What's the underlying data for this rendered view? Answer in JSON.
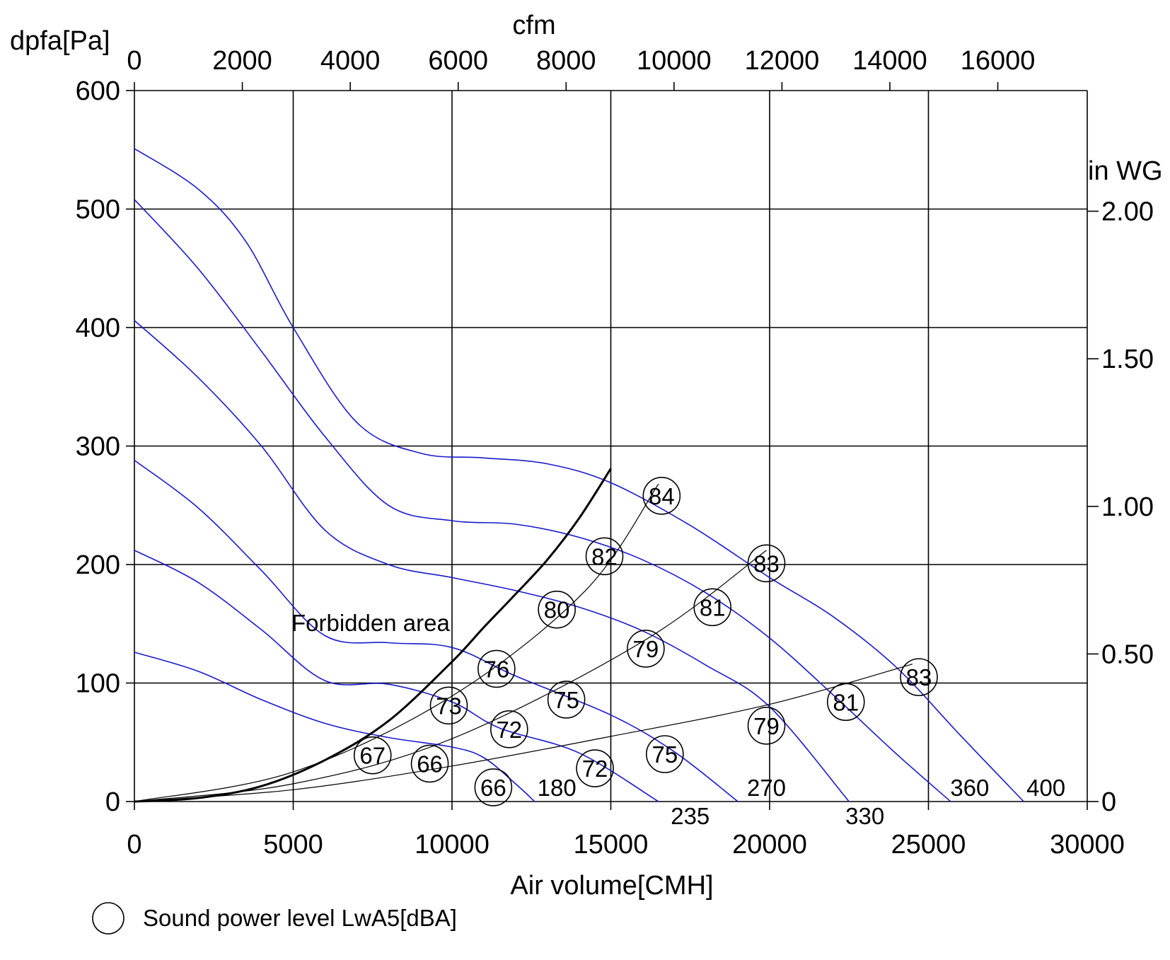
{
  "chart_data": {
    "type": "line",
    "xlabel": "Air volume[CMH]",
    "x2label": "cfm",
    "ylabel": "dpfa[Pa]",
    "y2label": "in WG",
    "xlim": [
      0,
      30000
    ],
    "ylim": [
      0,
      600
    ],
    "x_ticks": [
      0,
      5000,
      10000,
      15000,
      20000,
      25000,
      30000
    ],
    "y_ticks": [
      0,
      100,
      200,
      300,
      400,
      500,
      600
    ],
    "x2_ticks": [
      0,
      2000,
      4000,
      6000,
      8000,
      10000,
      12000,
      14000,
      16000
    ],
    "y2_ticks": [
      {
        "label": "0",
        "value": 0
      },
      {
        "label": "0.50",
        "value": 0.5
      },
      {
        "label": "1.00",
        "value": 1.0
      },
      {
        "label": "1.50",
        "value": 1.5
      },
      {
        "label": "2.00",
        "value": 2.0
      }
    ],
    "grid": true,
    "fan_curves": [
      {
        "points": [
          [
            0,
            126
          ],
          [
            2000,
            110
          ],
          [
            4000,
            86
          ],
          [
            6000,
            66
          ],
          [
            8000,
            54
          ],
          [
            10000,
            46
          ],
          [
            11000,
            37
          ],
          [
            12000,
            15
          ],
          [
            12600,
            0
          ]
        ]
      },
      {
        "points": [
          [
            0,
            212
          ],
          [
            2000,
            185
          ],
          [
            4000,
            145
          ],
          [
            6000,
            102
          ],
          [
            8000,
            99
          ],
          [
            10000,
            84
          ],
          [
            11500,
            62
          ],
          [
            14000,
            41
          ],
          [
            16500,
            0
          ]
        ]
      },
      {
        "points": [
          [
            0,
            288
          ],
          [
            2000,
            248
          ],
          [
            4000,
            195
          ],
          [
            6000,
            140
          ],
          [
            8000,
            134
          ],
          [
            10000,
            130
          ],
          [
            12000,
            106
          ],
          [
            15000,
            73
          ],
          [
            17000,
            42
          ],
          [
            19000,
            0
          ]
        ]
      },
      {
        "points": [
          [
            0,
            406
          ],
          [
            2000,
            358
          ],
          [
            4000,
            300
          ],
          [
            6000,
            229
          ],
          [
            8000,
            200
          ],
          [
            10000,
            189
          ],
          [
            12000,
            178
          ],
          [
            14000,
            164
          ],
          [
            16000,
            144
          ],
          [
            18000,
            115
          ],
          [
            20000,
            80
          ],
          [
            22500,
            0
          ]
        ]
      },
      {
        "points": [
          [
            0,
            508
          ],
          [
            2000,
            450
          ],
          [
            4000,
            380
          ],
          [
            6000,
            308
          ],
          [
            8000,
            250
          ],
          [
            10000,
            237
          ],
          [
            12000,
            234
          ],
          [
            14000,
            223
          ],
          [
            16000,
            204
          ],
          [
            18000,
            176
          ],
          [
            20000,
            138
          ],
          [
            22000,
            90
          ],
          [
            24000,
            40
          ],
          [
            25700,
            0
          ]
        ]
      },
      {
        "points": [
          [
            0,
            551
          ],
          [
            2000,
            517
          ],
          [
            3500,
            473
          ],
          [
            5000,
            400
          ],
          [
            7000,
            320
          ],
          [
            9000,
            294
          ],
          [
            11000,
            290
          ],
          [
            13000,
            285
          ],
          [
            15000,
            269
          ],
          [
            17500,
            233
          ],
          [
            20000,
            189
          ],
          [
            22000,
            156
          ],
          [
            24000,
            113
          ],
          [
            26000,
            56
          ],
          [
            28000,
            0
          ]
        ]
      }
    ],
    "fan_curve_labels": [
      {
        "label": "180",
        "x": 13300,
        "y": 12
      },
      {
        "label": "235",
        "x": 17500,
        "y": -12
      },
      {
        "label": "270",
        "x": 19900,
        "y": 12
      },
      {
        "label": "330",
        "x": 23000,
        "y": -12
      },
      {
        "label": "360",
        "x": 26300,
        "y": 12
      },
      {
        "label": "400",
        "x": 28700,
        "y": 12
      }
    ],
    "system_lines": [
      {
        "points": [
          [
            0,
            0
          ],
          [
            5000,
            15
          ],
          [
            10000,
            53
          ],
          [
            16000,
            135
          ],
          [
            19900,
            212
          ]
        ]
      },
      {
        "points": [
          [
            0,
            0
          ],
          [
            5000,
            25
          ],
          [
            10000,
            89
          ],
          [
            14200,
            178
          ],
          [
            16500,
            268
          ]
        ]
      },
      {
        "points": [
          [
            0,
            0
          ],
          [
            5000,
            10
          ],
          [
            10000,
            30
          ],
          [
            15000,
            55
          ],
          [
            20000,
            82
          ],
          [
            24500,
            116
          ]
        ]
      }
    ],
    "limit_line": {
      "label": "Forbidden area",
      "points": [
        [
          0,
          0
        ],
        [
          2000,
          3
        ],
        [
          4000,
          13
        ],
        [
          6000,
          35
        ],
        [
          8000,
          68
        ],
        [
          10000,
          118
        ],
        [
          11000,
          147
        ],
        [
          12000,
          175
        ],
        [
          13000,
          204
        ],
        [
          14000,
          239
        ],
        [
          15000,
          281
        ]
      ]
    },
    "sound_points": [
      {
        "label": "67",
        "x": 7500,
        "y": 39
      },
      {
        "label": "66",
        "x": 9300,
        "y": 32
      },
      {
        "label": "66",
        "x": 11300,
        "y": 12
      },
      {
        "label": "73",
        "x": 9900,
        "y": 81
      },
      {
        "label": "72",
        "x": 11800,
        "y": 61
      },
      {
        "label": "72",
        "x": 14500,
        "y": 28
      },
      {
        "label": "76",
        "x": 11400,
        "y": 112
      },
      {
        "label": "75",
        "x": 13600,
        "y": 86
      },
      {
        "label": "75",
        "x": 16700,
        "y": 40
      },
      {
        "label": "80",
        "x": 13300,
        "y": 162
      },
      {
        "label": "79",
        "x": 16100,
        "y": 129
      },
      {
        "label": "79",
        "x": 19900,
        "y": 64
      },
      {
        "label": "82",
        "x": 14800,
        "y": 207
      },
      {
        "label": "81",
        "x": 18200,
        "y": 164
      },
      {
        "label": "81",
        "x": 22400,
        "y": 84
      },
      {
        "label": "84",
        "x": 16600,
        "y": 258
      },
      {
        "label": "83",
        "x": 19900,
        "y": 201
      },
      {
        "label": "83",
        "x": 24700,
        "y": 105
      }
    ],
    "legend": {
      "label": "Sound power level LwA5[dBA]",
      "placement": "bottom-left"
    }
  }
}
